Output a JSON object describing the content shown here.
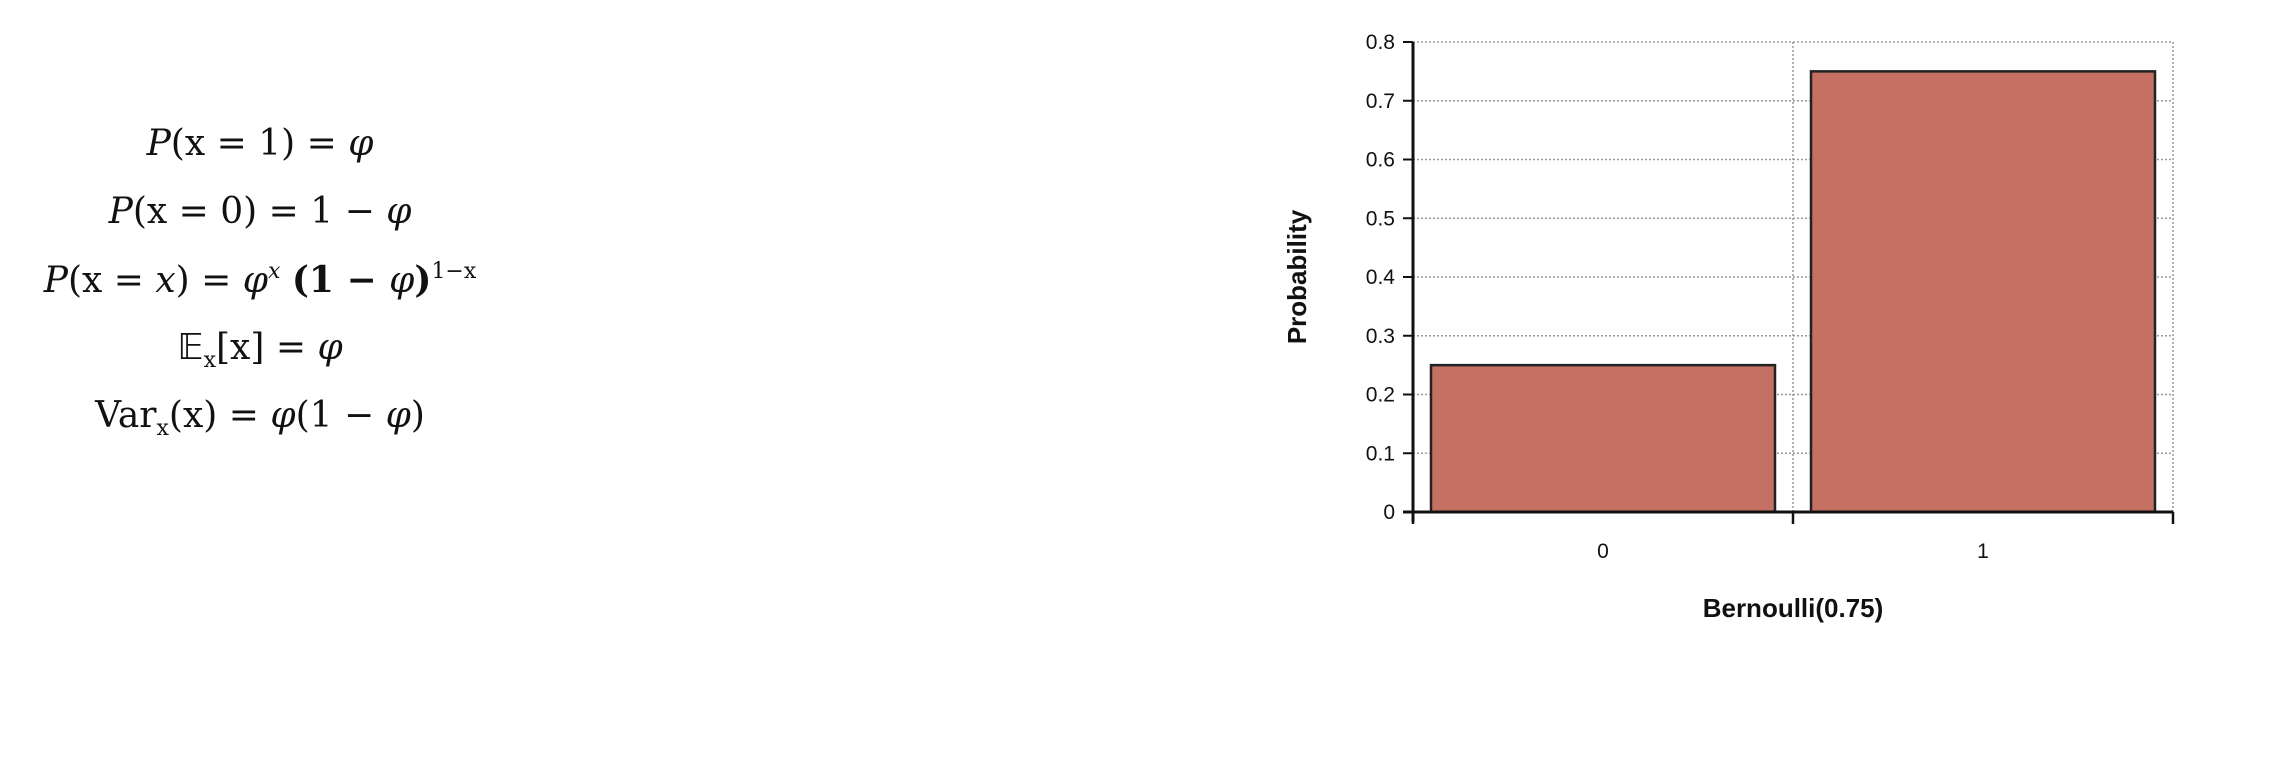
{
  "equations": {
    "eq1": {
      "P": "P",
      "lp": "(x = 1) = ",
      "phi": "φ"
    },
    "eq2": {
      "P": "P",
      "lp": "(x = 0) = 1 − ",
      "phi": "φ"
    },
    "eq3": {
      "P": "P",
      "lp": "(x = ",
      "x": "x",
      "mid": ") = ",
      "phi": "φ",
      "exp1": "x",
      "paren": "(1 − ",
      "phi2": "φ",
      "close": ")",
      "exp2": "1−x"
    },
    "eq4": {
      "E": "𝔼",
      "sub": "x",
      "rest": "[x] = ",
      "phi": "φ"
    },
    "eq5": {
      "var": "Var",
      "sub": "x",
      "rest": "(x) = ",
      "phi": "φ",
      "mid": "(1 − ",
      "phi2": "φ",
      "close": ")"
    }
  },
  "chart_data": {
    "type": "bar",
    "categories": [
      "0",
      "1"
    ],
    "values": [
      0.25,
      0.75
    ],
    "xlabel": "Bernoulli(0.75)",
    "ylabel": "Probability",
    "ylim": [
      0,
      0.8
    ],
    "yticks": [
      "0",
      "0.1",
      "0.2",
      "0.3",
      "0.4",
      "0.5",
      "0.6",
      "0.7",
      "0.8"
    ],
    "grid": true,
    "bar_color": "#c47062"
  }
}
